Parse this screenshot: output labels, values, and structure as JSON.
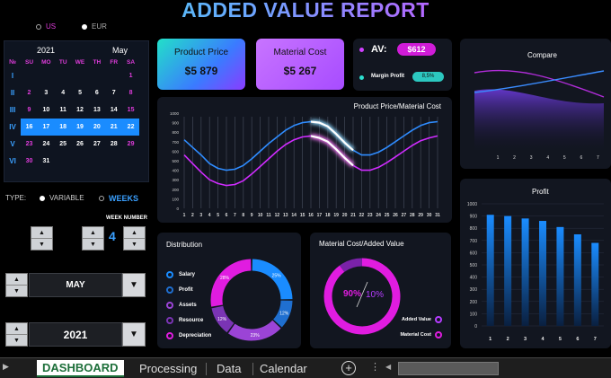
{
  "title": "ADDED VALUE REPORT",
  "currency": {
    "options": [
      "US",
      "EUR"
    ],
    "selected": "US"
  },
  "calendar": {
    "year": "2021",
    "month": "May",
    "week_header": "№",
    "day_headers": [
      "SU",
      "MO",
      "TU",
      "WE",
      "TH",
      "FR",
      "SA"
    ],
    "weeks": [
      {
        "label": "I",
        "days": [
          "",
          "",
          "",
          "",
          "",
          "",
          "1"
        ]
      },
      {
        "label": "II",
        "days": [
          "2",
          "3",
          "4",
          "5",
          "6",
          "7",
          "8"
        ]
      },
      {
        "label": "III",
        "days": [
          "9",
          "10",
          "11",
          "12",
          "13",
          "14",
          "15"
        ]
      },
      {
        "label": "IV",
        "days": [
          "16",
          "17",
          "18",
          "19",
          "20",
          "21",
          "22"
        ]
      },
      {
        "label": "V",
        "days": [
          "23",
          "24",
          "25",
          "26",
          "27",
          "28",
          "29"
        ]
      },
      {
        "label": "VI",
        "days": [
          "30",
          "31",
          "",
          "",
          "",
          "",
          ""
        ]
      }
    ],
    "highlight_week": 3
  },
  "type_selector": {
    "label": "TYPE:",
    "options": [
      "VARIABLE",
      "WEEKS"
    ],
    "selected": "WEEKS"
  },
  "week_number": {
    "label": "WEEK NUMBER",
    "value": "4"
  },
  "month_select": {
    "value": "MAY"
  },
  "year_select": {
    "value": "2021"
  },
  "kpi": {
    "product_price": {
      "label": "Product Price",
      "value": "$5 879"
    },
    "material_cost": {
      "label": "Material Cost",
      "value": "$5 267"
    },
    "av": {
      "label": "AV:",
      "value": "$612"
    },
    "margin": {
      "label": "Margin Profit",
      "value": "8,5%"
    }
  },
  "colors": {
    "cyan": "#2de0d0",
    "purple": "#b63cff",
    "blue": "#1a8cff",
    "magenta": "#e01ce0"
  },
  "chart_data": [
    {
      "type": "line",
      "title": "Product Price/Material Cost",
      "x": [
        1,
        2,
        3,
        4,
        5,
        6,
        7,
        8,
        9,
        10,
        11,
        12,
        13,
        14,
        15,
        16,
        17,
        18,
        19,
        20,
        21,
        22,
        23,
        24,
        25,
        26,
        27,
        28,
        29,
        30,
        31
      ],
      "yticks": [
        0,
        100,
        200,
        300,
        400,
        500,
        600,
        700,
        800,
        900,
        1000
      ],
      "ylim": [
        0,
        1000
      ],
      "series": [
        {
          "color": "#2f8cff",
          "values": [
            720,
            640,
            560,
            470,
            420,
            400,
            410,
            450,
            520,
            600,
            680,
            750,
            820,
            870,
            900,
            910,
            900,
            860,
            780,
            690,
            610,
            560,
            560,
            590,
            640,
            700,
            760,
            820,
            870,
            900,
            910
          ]
        },
        {
          "color": "#d02cff",
          "values": [
            560,
            470,
            380,
            300,
            260,
            240,
            250,
            290,
            360,
            440,
            520,
            600,
            670,
            720,
            750,
            760,
            740,
            700,
            620,
            530,
            450,
            400,
            400,
            430,
            480,
            540,
            600,
            660,
            710,
            740,
            760
          ]
        }
      ]
    },
    {
      "type": "pie",
      "title": "Distribution",
      "categories": [
        "Salary",
        "Profit",
        "Assets",
        "Resource",
        "Depreciation"
      ],
      "values": [
        25,
        12,
        23,
        12,
        28
      ],
      "colors": [
        "#1a8cff",
        "#1f6fd0",
        "#9b44d6",
        "#7a34b4",
        "#e01ce0"
      ]
    },
    {
      "type": "pie",
      "title": "Material Cost/Added Value",
      "categories": [
        "Added Value",
        "Material Cost"
      ],
      "labels": [
        "90%",
        "10%"
      ],
      "values": [
        90,
        10
      ]
    },
    {
      "type": "area",
      "title": "Compare",
      "x": [
        1,
        2,
        3,
        4,
        5,
        6,
        7
      ]
    },
    {
      "type": "bar",
      "title": "Profit",
      "categories": [
        "1",
        "2",
        "3",
        "4",
        "5",
        "6",
        "7"
      ],
      "values": [
        910,
        900,
        880,
        860,
        810,
        750,
        680
      ],
      "yticks": [
        0,
        100,
        200,
        300,
        400,
        500,
        600,
        700,
        800,
        900,
        1000
      ],
      "ylim": [
        0,
        1000
      ]
    }
  ],
  "sheet_tabs": [
    "DASHBOARD",
    "Processing",
    "Data",
    "Calendar"
  ],
  "active_tab": "DASHBOARD"
}
